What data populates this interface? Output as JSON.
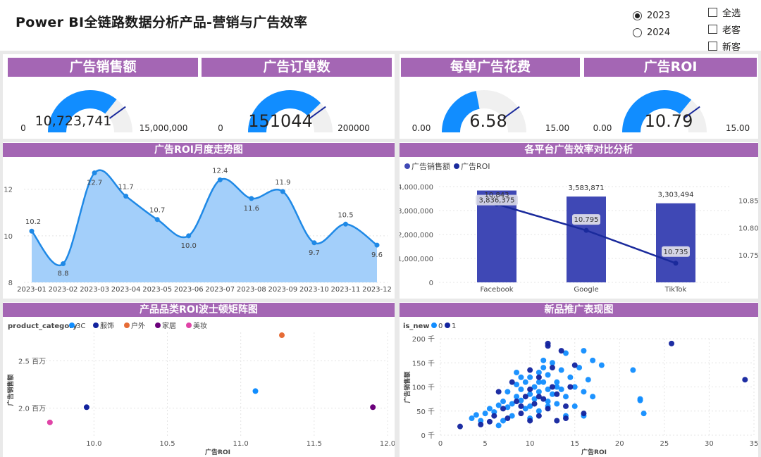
{
  "title": "Power BI全链路数据分析产品-营销与广告效率",
  "year_filter": {
    "options": [
      {
        "label": "2023",
        "selected": true
      },
      {
        "label": "2024",
        "selected": false
      }
    ]
  },
  "customer_filter": {
    "options": [
      {
        "label": "全选"
      },
      {
        "label": "老客"
      },
      {
        "label": "新客"
      }
    ]
  },
  "colors": {
    "banner": "#a466b4",
    "gauge_fill": "#118dff",
    "gauge_track": "#f0f0f0",
    "bar": "#3f48b5",
    "line": "#1a2a9c",
    "area": "#a3cffa",
    "area_line": "#1f89e6"
  },
  "kpis": [
    {
      "title": "广告销售额",
      "value": "10,723,741",
      "min": "0",
      "max": "15,000,000",
      "fraction": 0.715
    },
    {
      "title": "广告订单数",
      "value": "151044",
      "min": "0",
      "max": "200000",
      "fraction": 0.755
    },
    {
      "title": "每单广告花费",
      "value": "6.58",
      "min": "0.00",
      "max": "15.00",
      "fraction": 0.439
    },
    {
      "title": "广告ROI",
      "value": "10.79",
      "min": "0.00",
      "max": "15.00",
      "fraction": 0.719
    }
  ],
  "sections": {
    "roi_trend": "广告ROI月度走势图",
    "platform": "各平台广告效率对比分析",
    "category": "产品品类ROI波士顿矩阵图",
    "new_product": "新品推广表现图"
  },
  "roi_chart": {
    "type": "area",
    "categories": [
      "2023-01",
      "2023-02",
      "2023-03",
      "2023-04",
      "2023-05",
      "2023-06",
      "2023-07",
      "2023-08",
      "2023-09",
      "2023-10",
      "2023-11",
      "2023-12"
    ],
    "values": [
      10.2,
      8.8,
      12.7,
      11.7,
      10.7,
      10.0,
      12.4,
      11.6,
      11.9,
      9.7,
      10.5,
      9.6
    ],
    "labels": [
      "10.2",
      "8.8",
      "12.7",
      "11.7",
      "10.7",
      "10.0",
      "12.4",
      "11.6",
      "11.9",
      "9.7",
      "10.5",
      "9.6"
    ],
    "y_ticks": [
      "8",
      "10",
      "12"
    ],
    "ylim": [
      8,
      13.2
    ]
  },
  "platform_chart": {
    "type": "bar",
    "legend": [
      "广告销售额",
      "广告ROI"
    ],
    "categories": [
      "Facebook",
      "Google",
      "TikTok"
    ],
    "sales": [
      3836375,
      3583871,
      3303494
    ],
    "sales_labels": [
      "3,836,375",
      "3,583,871",
      "3,303,494"
    ],
    "roi": [
      10.843,
      10.795,
      10.735
    ],
    "roi_labels": [
      "10,843",
      "10.795",
      "10.735"
    ],
    "y_left_ticks": [
      "0",
      "1,000,000",
      "2,000,000",
      "3,000,000",
      "4,000,000"
    ],
    "y_right_ticks": [
      "10.75",
      "10.80",
      "10.85"
    ],
    "y_left_lim": [
      0,
      4000000
    ],
    "y_right_lim": [
      10.7,
      10.875
    ]
  },
  "category_chart": {
    "type": "scatter",
    "legend_title": "product_category",
    "legend": [
      {
        "name": "3C",
        "color": "#118dff"
      },
      {
        "name": "服饰",
        "color": "#12239e"
      },
      {
        "name": "户外",
        "color": "#e66c37"
      },
      {
        "name": "家居",
        "color": "#6b007b"
      },
      {
        "name": "美妆",
        "color": "#e044a7"
      }
    ],
    "points": [
      {
        "cat": "3C",
        "x": 11.1,
        "y": 2.18
      },
      {
        "cat": "服饰",
        "x": 9.95,
        "y": 2.01
      },
      {
        "cat": "户外",
        "x": 11.28,
        "y": 2.77
      },
      {
        "cat": "家居",
        "x": 11.9,
        "y": 2.01
      },
      {
        "cat": "美妆",
        "x": 9.7,
        "y": 1.85
      }
    ],
    "x_ticks": [
      "10.0",
      "10.5",
      "11.0",
      "11.5",
      "12.0"
    ],
    "y_ticks": [
      "2.0 百万",
      "2.5 百万"
    ],
    "xlabel": "广告ROI",
    "ylabel": "广告销售额",
    "xlim": [
      9.6,
      12.0
    ],
    "ylim": [
      1.7,
      2.8
    ]
  },
  "new_product_chart": {
    "type": "scatter",
    "legend_title": "is_new",
    "legend": [
      {
        "name": "0",
        "color": "#118dff"
      },
      {
        "name": "1",
        "color": "#12239e"
      }
    ],
    "x_ticks": [
      "0",
      "5",
      "10",
      "15",
      "20",
      "25",
      "30",
      "35"
    ],
    "y_ticks": [
      "0 千",
      "50 千",
      "100 千",
      "150 千",
      "200 千"
    ],
    "xlabel": "广告ROI",
    "ylabel": "广告销售额",
    "xlim": [
      0,
      35
    ],
    "ylim": [
      0,
      200
    ],
    "points0": [
      [
        3.5,
        35
      ],
      [
        4,
        42
      ],
      [
        4.5,
        30
      ],
      [
        5,
        45
      ],
      [
        5.5,
        55
      ],
      [
        6,
        48
      ],
      [
        6.5,
        62
      ],
      [
        6.5,
        20
      ],
      [
        7,
        70
      ],
      [
        7.5,
        58
      ],
      [
        7.5,
        90
      ],
      [
        8,
        40
      ],
      [
        8,
        65
      ],
      [
        8.5,
        80
      ],
      [
        8.5,
        105
      ],
      [
        9,
        72
      ],
      [
        9,
        95
      ],
      [
        9.5,
        110
      ],
      [
        9.5,
        55
      ],
      [
        10,
        85
      ],
      [
        10,
        120
      ],
      [
        10,
        60
      ],
      [
        10.5,
        100
      ],
      [
        10.5,
        75
      ],
      [
        11,
        130
      ],
      [
        11,
        90
      ],
      [
        11,
        50
      ],
      [
        11.5,
        110
      ],
      [
        11.5,
        140
      ],
      [
        12,
        95
      ],
      [
        12,
        125
      ],
      [
        12,
        70
      ],
      [
        12.5,
        85
      ],
      [
        12.5,
        150
      ],
      [
        13,
        110
      ],
      [
        13,
        65
      ],
      [
        13.5,
        135
      ],
      [
        13.5,
        95
      ],
      [
        14,
        80
      ],
      [
        14,
        170
      ],
      [
        14.5,
        120
      ],
      [
        15,
        100
      ],
      [
        15,
        60
      ],
      [
        15.5,
        140
      ],
      [
        16,
        90
      ],
      [
        16,
        175
      ],
      [
        16.5,
        115
      ],
      [
        17,
        155
      ],
      [
        17,
        80
      ],
      [
        18,
        145
      ],
      [
        14,
        40
      ],
      [
        10,
        35
      ],
      [
        11.5,
        155
      ],
      [
        9,
        120
      ],
      [
        12,
        60
      ],
      [
        13,
        100
      ],
      [
        21.5,
        135
      ],
      [
        22.3,
        75
      ],
      [
        22.3,
        72
      ],
      [
        22.7,
        45
      ],
      [
        8.5,
        130
      ],
      [
        16,
        40
      ],
      [
        7,
        30
      ],
      [
        11,
        110
      ]
    ],
    "points1": [
      [
        2.2,
        18
      ],
      [
        4.5,
        22
      ],
      [
        5.5,
        28
      ],
      [
        6,
        40
      ],
      [
        6.5,
        90
      ],
      [
        7,
        55
      ],
      [
        7.5,
        35
      ],
      [
        8,
        110
      ],
      [
        8.5,
        70
      ],
      [
        9,
        45
      ],
      [
        9.5,
        80
      ],
      [
        10,
        30
      ],
      [
        10,
        95
      ],
      [
        10.5,
        65
      ],
      [
        11,
        120
      ],
      [
        11,
        40
      ],
      [
        11.5,
        75
      ],
      [
        12,
        190
      ],
      [
        12,
        55
      ],
      [
        12.5,
        100
      ],
      [
        13,
        85
      ],
      [
        13,
        30
      ],
      [
        13.5,
        175
      ],
      [
        14,
        60
      ],
      [
        14.5,
        100
      ],
      [
        15,
        145
      ],
      [
        12.5,
        140
      ],
      [
        10,
        135
      ],
      [
        11,
        80
      ],
      [
        9,
        60
      ],
      [
        14,
        35
      ],
      [
        16,
        45
      ],
      [
        12,
        185
      ],
      [
        25.8,
        190
      ],
      [
        34,
        115
      ]
    ]
  }
}
